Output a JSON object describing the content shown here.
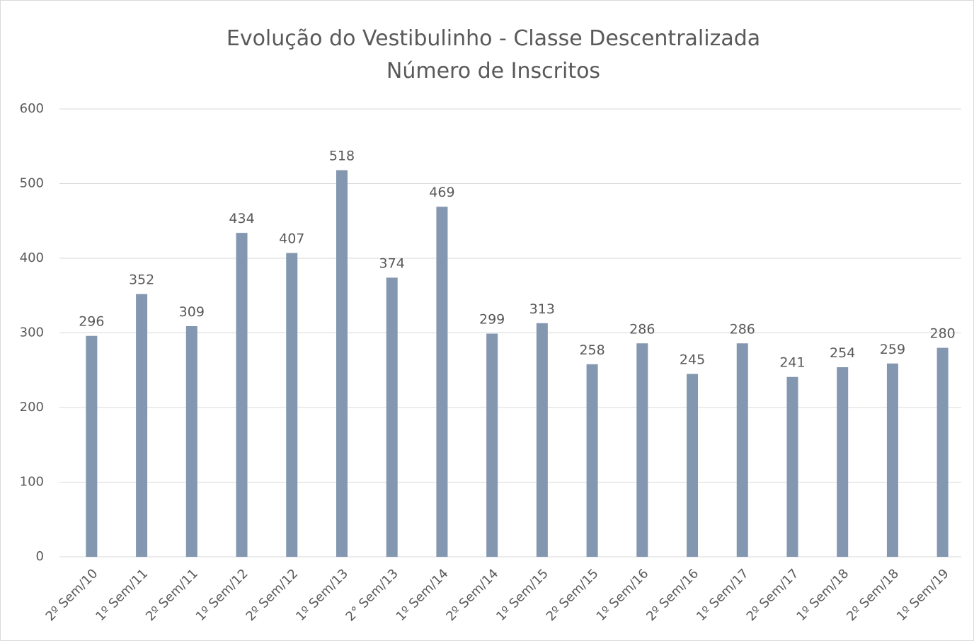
{
  "chart_data": {
    "type": "bar",
    "title": "Evolução do Vestibulinho - Classe Descentralizada",
    "subtitle": "Número de Inscritos",
    "categories": [
      "2º Sem/10",
      "1º Sem/11",
      "2º Sem/11",
      "1º Sem/12",
      "2º Sem/12",
      "1º Sem/13",
      "2° Sem/13",
      "1º Sem/14",
      "2º Sem/14",
      "1º Sem/15",
      "2º Sem/15",
      "1º Sem/16",
      "2º Sem/16",
      "1º Sem/17",
      "2º Sem/17",
      "1º Sem/18",
      "2º Sem/18",
      "1º Sem/19"
    ],
    "values": [
      296,
      352,
      309,
      434,
      407,
      518,
      374,
      469,
      299,
      313,
      258,
      286,
      245,
      286,
      241,
      254,
      259,
      280
    ],
    "color": "#8497b0",
    "ylim": [
      0,
      600
    ],
    "yticks": [
      0,
      100,
      200,
      300,
      400,
      500,
      600
    ],
    "grid": true
  }
}
